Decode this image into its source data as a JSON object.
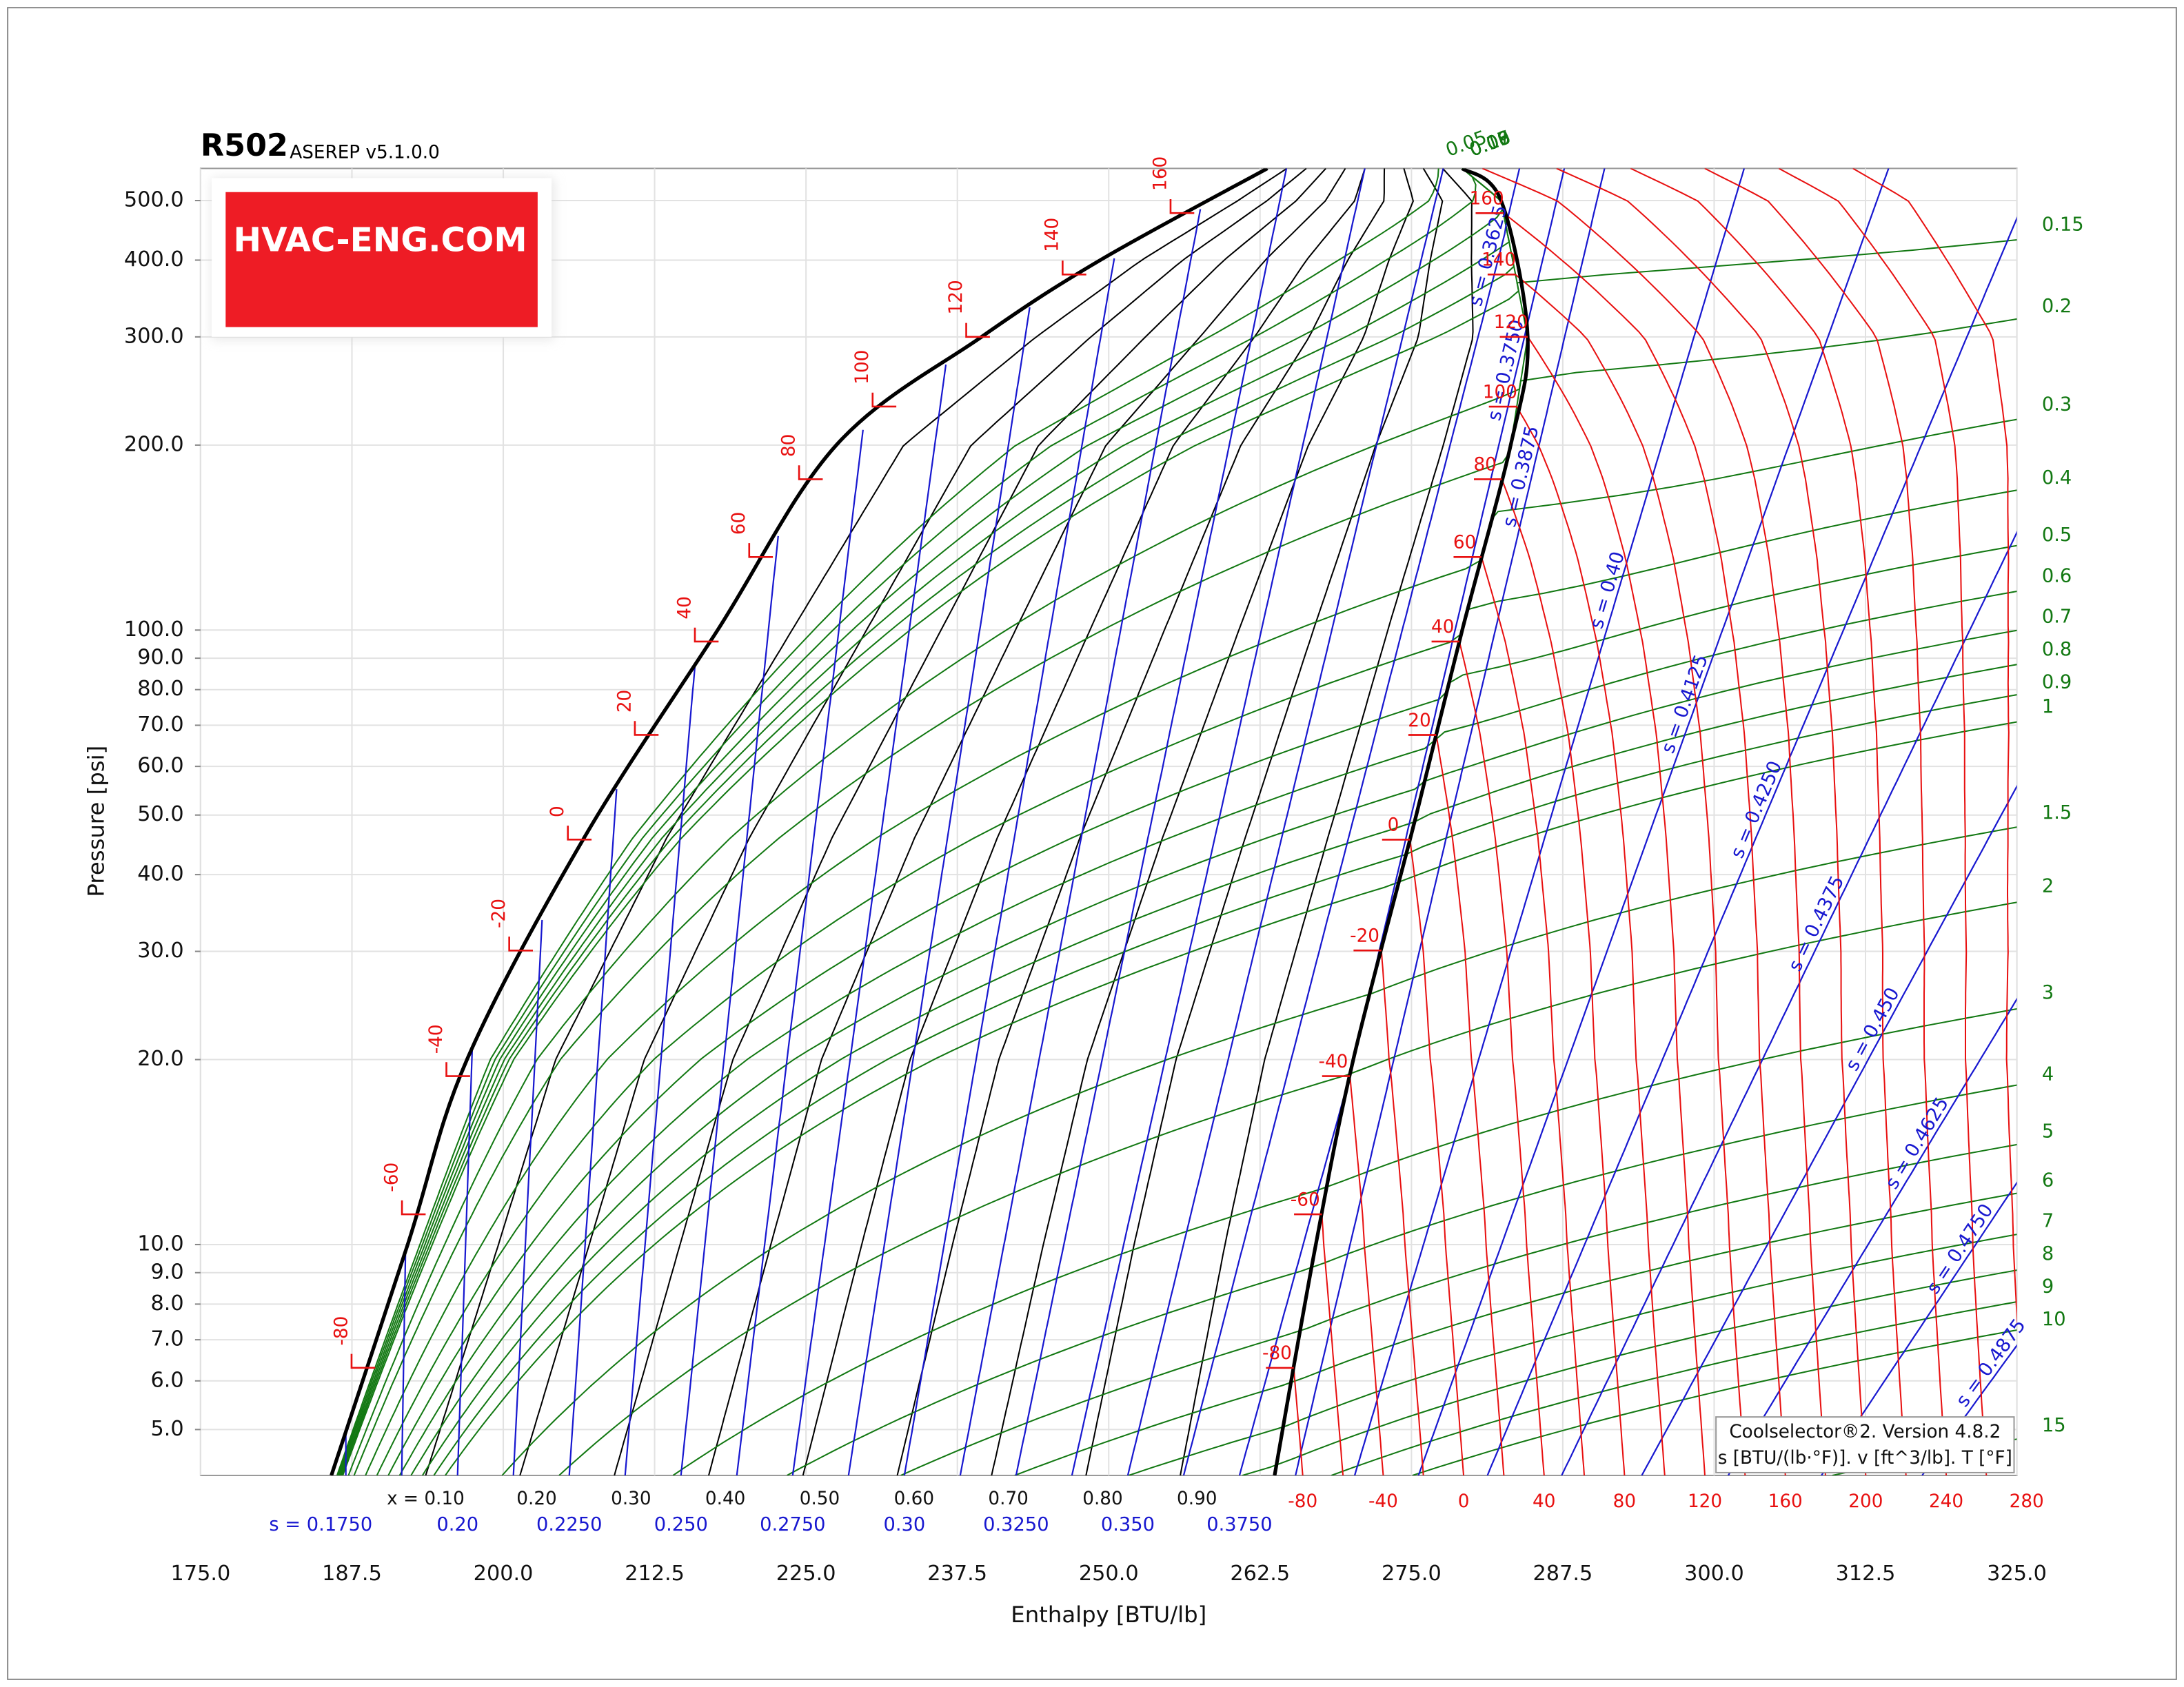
{
  "chart_data": {
    "type": "ph-diagram",
    "title": "R502",
    "subtitle": "ASEREP v5.1.0.0",
    "x_label": "Enthalpy [BTU/lb]",
    "y_label": "Pressure [psi]",
    "watermark": "HVAC-ENG.COM",
    "info": [
      "Coolselector®2. Version 4.8.2",
      "s [BTU/(lb·°F)]. v [ft^3/lb]. T [°F]"
    ],
    "xlim": [
      175,
      325
    ],
    "ylim": [
      4.21,
      564
    ],
    "log_y": true,
    "grid": true,
    "xticks": [
      {
        "value": 175,
        "label": "175.0"
      },
      {
        "value": 187.5,
        "label": "187.5"
      },
      {
        "value": 200,
        "label": "200.0"
      },
      {
        "value": 212.5,
        "label": "212.5"
      },
      {
        "value": 225,
        "label": "225.0"
      },
      {
        "value": 237.5,
        "label": "237.5"
      },
      {
        "value": 250,
        "label": "250.0"
      },
      {
        "value": 262.5,
        "label": "262.5"
      },
      {
        "value": 275,
        "label": "275.0"
      },
      {
        "value": 287.5,
        "label": "287.5"
      },
      {
        "value": 300,
        "label": "300.0"
      },
      {
        "value": 312.5,
        "label": "312.5"
      },
      {
        "value": 325,
        "label": "325.0"
      }
    ],
    "yticks": [
      {
        "value": 5,
        "label": "5.0"
      },
      {
        "value": 6,
        "label": "6.0"
      },
      {
        "value": 7,
        "label": "7.0"
      },
      {
        "value": 8,
        "label": "8.0"
      },
      {
        "value": 9,
        "label": "9.0"
      },
      {
        "value": 10,
        "label": "10.0"
      },
      {
        "value": 20,
        "label": "20.0"
      },
      {
        "value": 30,
        "label": "30.0"
      },
      {
        "value": 40,
        "label": "40.0"
      },
      {
        "value": 50,
        "label": "50.0"
      },
      {
        "value": 60,
        "label": "60.0"
      },
      {
        "value": 70,
        "label": "70.0"
      },
      {
        "value": 80,
        "label": "80.0"
      },
      {
        "value": 90,
        "label": "90.0"
      },
      {
        "value": 100,
        "label": "100.0"
      },
      {
        "value": 200,
        "label": "200.0"
      },
      {
        "value": 300,
        "label": "300.0"
      },
      {
        "value": 400,
        "label": "400.0"
      },
      {
        "value": 500,
        "label": "500.0"
      }
    ],
    "saturated_liquid": {
      "color": "#000000",
      "h": [
        185.8,
        192.1,
        197.0,
        206.7,
        217.7,
        227.5,
        239.5,
        249.3,
        263.1
      ],
      "p": [
        4.21,
        10,
        20,
        46,
        100,
        200,
        300,
        400,
        564
      ]
    },
    "saturated_vapor": {
      "color": "#000000",
      "h": [
        263.7,
        267.1,
        270.2,
        275.4,
        279.2,
        283.2,
        284.6,
        282.4,
        279.2
      ],
      "p": [
        4.21,
        10,
        20,
        50,
        100,
        200,
        300,
        500,
        564
      ]
    },
    "saturation": {
      "color": "#e81010",
      "temperatures": [
        -80,
        -60,
        -40,
        -20,
        0,
        20,
        40,
        60,
        80,
        100,
        120,
        140,
        160
      ],
      "pressures": [
        6.3,
        11.2,
        18.8,
        30.1,
        45.6,
        67.5,
        95.8,
        131.5,
        176,
        231,
        300,
        379,
        477
      ]
    },
    "isotherms": {
      "color": "#e81010",
      "values": [
        -80,
        -60,
        -40,
        -20,
        0,
        20,
        40,
        60,
        80,
        100,
        120,
        140,
        160,
        180,
        200,
        220,
        240,
        260,
        280
      ]
    },
    "quality": {
      "color": "#000000",
      "values": [
        0.1,
        0.2,
        0.3,
        0.4,
        0.5,
        0.6,
        0.7,
        0.8,
        0.9
      ],
      "value_labels": [
        "x = 0.10",
        "0.20",
        "0.30",
        "0.40",
        "0.50",
        "0.60",
        "0.70",
        "0.80",
        "0.90"
      ]
    },
    "isentropes": {
      "color": "#1818d0",
      "values": [
        0.175,
        0.1875,
        0.2,
        0.2125,
        0.225,
        0.2375,
        0.25,
        0.2625,
        0.275,
        0.2875,
        0.3,
        0.3125,
        0.325,
        0.3375,
        0.35,
        0.3625,
        0.375,
        0.3875,
        0.4,
        0.4125,
        0.425,
        0.4375,
        0.45,
        0.4625,
        0.475,
        0.4875
      ],
      "bottom_labels": [
        "s = 0.1750",
        null,
        "0.20",
        null,
        "0.2250",
        null,
        "0.250",
        null,
        "0.2750",
        null,
        "0.30",
        null,
        "0.3250",
        null,
        "0.350",
        null,
        "0.3750",
        null,
        null,
        null,
        null,
        null,
        null,
        null,
        null,
        null
      ],
      "line_labels": [
        null,
        null,
        null,
        null,
        null,
        null,
        null,
        null,
        null,
        null,
        null,
        null,
        null,
        null,
        null,
        "s = 0.3625",
        "s = 0.3750",
        "s = 0.3875",
        "s = 0.40",
        "s = 0.4125",
        "s = 0.4250",
        "s = 0.4375",
        "s = 0.450",
        "s = 0.4625",
        "s = 0.4750",
        "s = 0.4875"
      ]
    },
    "isochores": {
      "color": "#127812",
      "values": [
        0.05,
        0.06,
        0.07,
        0.08,
        0.09,
        0.1,
        0.15,
        0.2,
        0.3,
        0.4,
        0.5,
        0.6,
        0.7,
        0.8,
        0.9,
        1,
        1.5,
        2,
        3,
        4,
        5,
        6,
        7,
        8,
        9,
        10,
        15
      ]
    }
  }
}
